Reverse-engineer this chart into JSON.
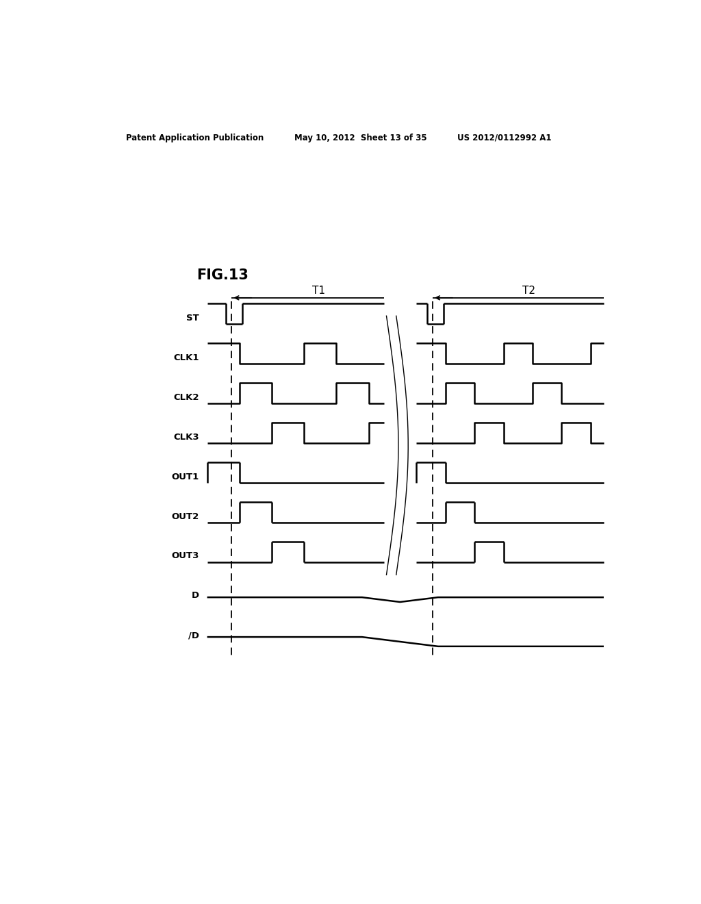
{
  "title": "FIG.13",
  "header_left": "Patent Application Publication",
  "header_center": "May 10, 2012  Sheet 13 of 35",
  "header_right": "US 2012/0112992 A1",
  "background_color": "#ffffff",
  "signals": [
    "ST",
    "CLK1",
    "CLK2",
    "CLK3",
    "OUT1",
    "OUT2",
    "OUT3",
    "D",
    "/D"
  ],
  "t1_label": "T1",
  "t2_label": "T2",
  "fig_label": "FIG.13"
}
